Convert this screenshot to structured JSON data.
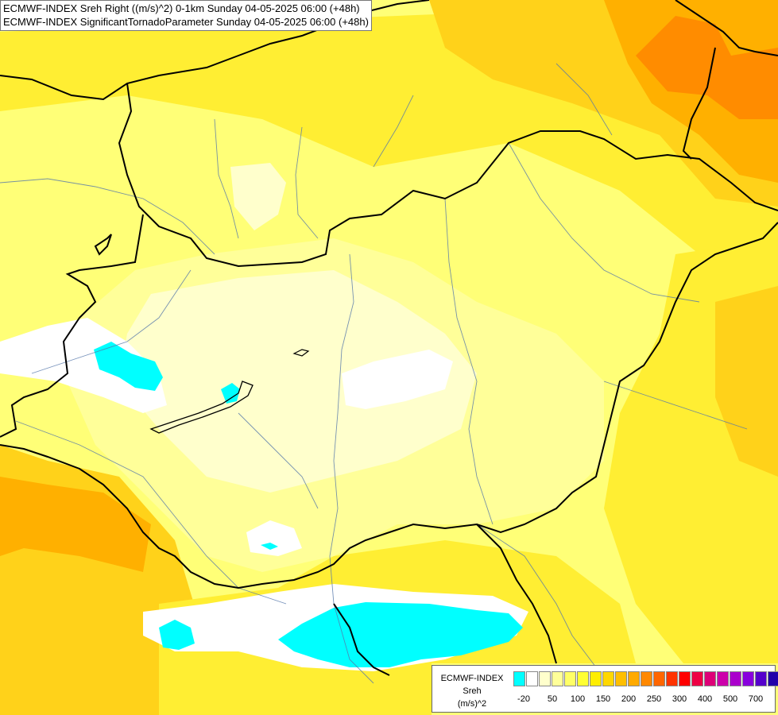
{
  "map": {
    "title_lines": [
      "ECMWF-INDEX Sreh Right ((m/s)^2) 0-1km Sunday 04-05-2025 06:00 (+48h)",
      "ECMWF-INDEX SignificantTornadoParameter Sunday 04-05-2025 06:00 (+48h)"
    ],
    "field_colors": {
      "cyan": "#00ffff",
      "white": "#ffffff",
      "very_pale_yellow": "#ffffcc",
      "pale_yellow": "#ffff99",
      "light_yellow": "#ffff66",
      "yellow": "#ffee33",
      "gold": "#ffd21a",
      "orange": "#ffb000",
      "dark_orange": "#ff8c00"
    }
  },
  "legend": {
    "model": "ECMWF-INDEX",
    "variable": "Sreh",
    "unit": "(m/s)^2",
    "colors": [
      "#00ffff",
      "#ffffff",
      "#ffffcc",
      "#ffff99",
      "#ffff66",
      "#ffff33",
      "#ffee00",
      "#ffd700",
      "#ffbf00",
      "#ffaa00",
      "#ff8800",
      "#ff6600",
      "#ff3300",
      "#ff0000",
      "#ee0044",
      "#dd0077",
      "#cc00aa",
      "#aa00cc",
      "#8800dd",
      "#5500cc",
      "#2200aa",
      "#000077"
    ],
    "ticks": [
      "-20",
      "50",
      "100",
      "150",
      "200",
      "250",
      "300",
      "400",
      "500",
      "700"
    ]
  }
}
